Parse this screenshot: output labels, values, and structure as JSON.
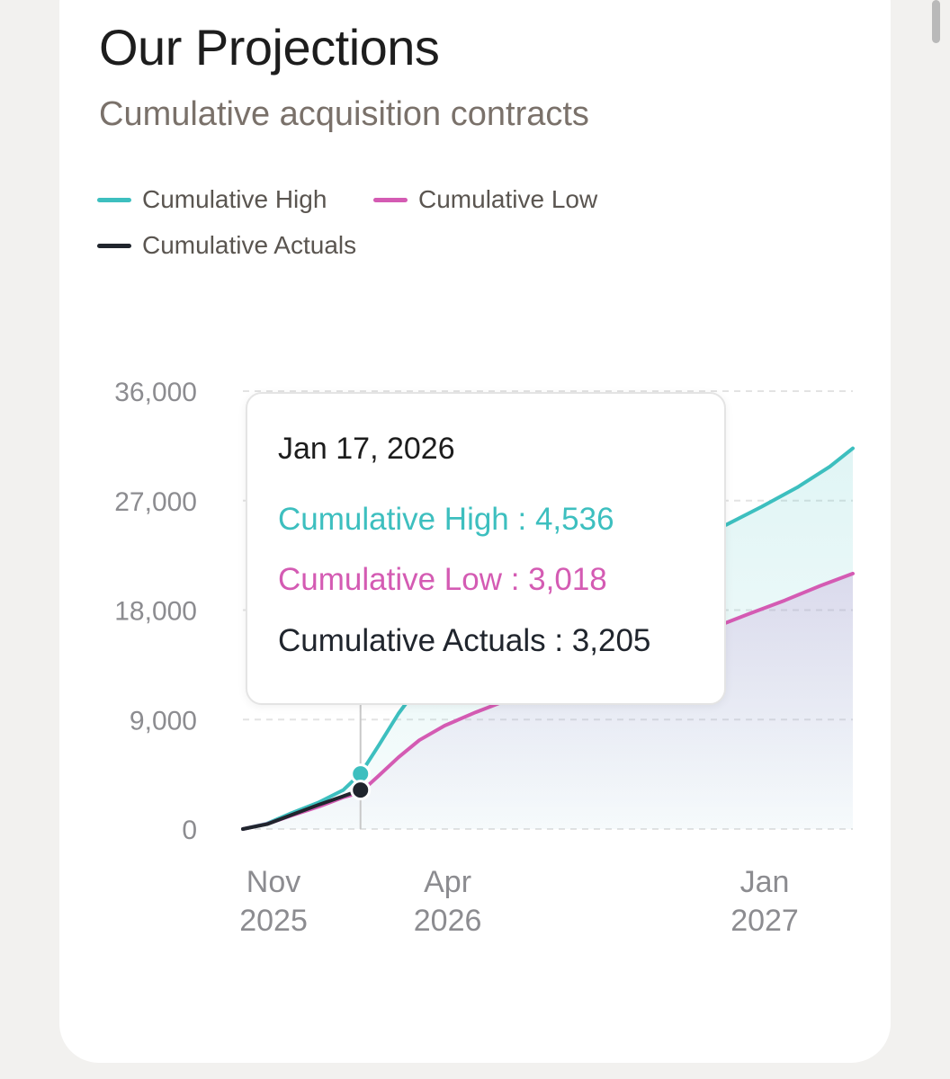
{
  "header": {
    "title": "Our Projections",
    "subtitle": "Cumulative acquisition contracts"
  },
  "legend": [
    {
      "label": "Cumulative High",
      "color": "#3dbfbf"
    },
    {
      "label": "Cumulative Low",
      "color": "#d45bb3"
    },
    {
      "label": "Cumulative Actuals",
      "color": "#20252d"
    }
  ],
  "tooltip": {
    "date": "Jan 17, 2026",
    "rows": [
      {
        "series": "Cumulative High",
        "value": "4,536",
        "text": "Cumulative High : 4,536",
        "color": "#3dbfbf"
      },
      {
        "series": "Cumulative Low",
        "value": "3,018",
        "text": "Cumulative Low : 3,018",
        "color": "#d45bb3"
      },
      {
        "series": "Cumulative Actuals",
        "value": "3,205",
        "text": "Cumulative Actuals : 3,205",
        "color": "#20252d"
      }
    ]
  },
  "chart_data": {
    "type": "area",
    "ylim": [
      0,
      36000
    ],
    "yticks": [
      0,
      9000,
      18000,
      27000,
      36000
    ],
    "ytick_labels": [
      "36,000",
      "27,000",
      "18,000",
      "9,000",
      "0"
    ],
    "xticks": [
      {
        "month": "Nov",
        "year": "2025",
        "date": "2025-11-01"
      },
      {
        "month": "Apr",
        "year": "2026",
        "date": "2026-04-01"
      },
      {
        "month": "Jan",
        "year": "2027",
        "date": "2027-01-01"
      }
    ],
    "xlim": [
      "2025-10-07",
      "2027-03-20"
    ],
    "grid": true,
    "gridlines": "dashed-horizontal",
    "legend_position": "top-left",
    "crosshair_date": "2026-01-17",
    "series": [
      {
        "name": "Cumulative High",
        "color": "#3dbfbf",
        "fill": true,
        "points": [
          [
            "2025-10-07",
            0
          ],
          [
            "2025-10-28",
            450
          ],
          [
            "2025-11-18",
            1300
          ],
          [
            "2025-12-12",
            2200
          ],
          [
            "2026-01-02",
            3200
          ],
          [
            "2026-01-17",
            4536
          ],
          [
            "2026-02-02",
            6900
          ],
          [
            "2026-02-19",
            9500
          ],
          [
            "2026-03-09",
            11800
          ],
          [
            "2026-04-03",
            14400
          ],
          [
            "2026-04-30",
            16700
          ],
          [
            "2026-05-27",
            19100
          ],
          [
            "2026-06-27",
            20800
          ],
          [
            "2026-07-31",
            21700
          ],
          [
            "2026-08-27",
            22300
          ],
          [
            "2026-09-24",
            23100
          ],
          [
            "2026-10-31",
            24000
          ],
          [
            "2026-11-30",
            25000
          ],
          [
            "2026-12-31",
            26500
          ],
          [
            "2027-01-31",
            28100
          ],
          [
            "2027-02-28",
            29800
          ],
          [
            "2027-03-20",
            31300
          ]
        ]
      },
      {
        "name": "Cumulative Low",
        "color": "#d45bb3",
        "fill": true,
        "points": [
          [
            "2025-10-07",
            0
          ],
          [
            "2025-10-28",
            420
          ],
          [
            "2025-11-18",
            1100
          ],
          [
            "2025-12-12",
            1850
          ],
          [
            "2026-01-02",
            2600
          ],
          [
            "2026-01-17",
            3018
          ],
          [
            "2026-02-02",
            4400
          ],
          [
            "2026-02-19",
            5900
          ],
          [
            "2026-03-09",
            7300
          ],
          [
            "2026-03-31",
            8500
          ],
          [
            "2026-04-27",
            9600
          ],
          [
            "2026-05-27",
            10700
          ],
          [
            "2026-06-25",
            11800
          ],
          [
            "2026-07-27",
            12700
          ],
          [
            "2026-08-27",
            13800
          ],
          [
            "2026-09-24",
            14800
          ],
          [
            "2026-10-24",
            15800
          ],
          [
            "2026-11-23",
            16700
          ],
          [
            "2026-12-20",
            17700
          ],
          [
            "2027-01-20",
            18800
          ],
          [
            "2027-02-20",
            20000
          ],
          [
            "2027-03-20",
            21000
          ]
        ]
      },
      {
        "name": "Cumulative Actuals",
        "color": "#20252d",
        "fill": false,
        "points": [
          [
            "2025-10-07",
            0
          ],
          [
            "2025-10-28",
            400
          ],
          [
            "2025-11-18",
            1150
          ],
          [
            "2025-12-12",
            2000
          ],
          [
            "2026-01-02",
            2700
          ],
          [
            "2026-01-17",
            3205
          ]
        ]
      }
    ]
  }
}
